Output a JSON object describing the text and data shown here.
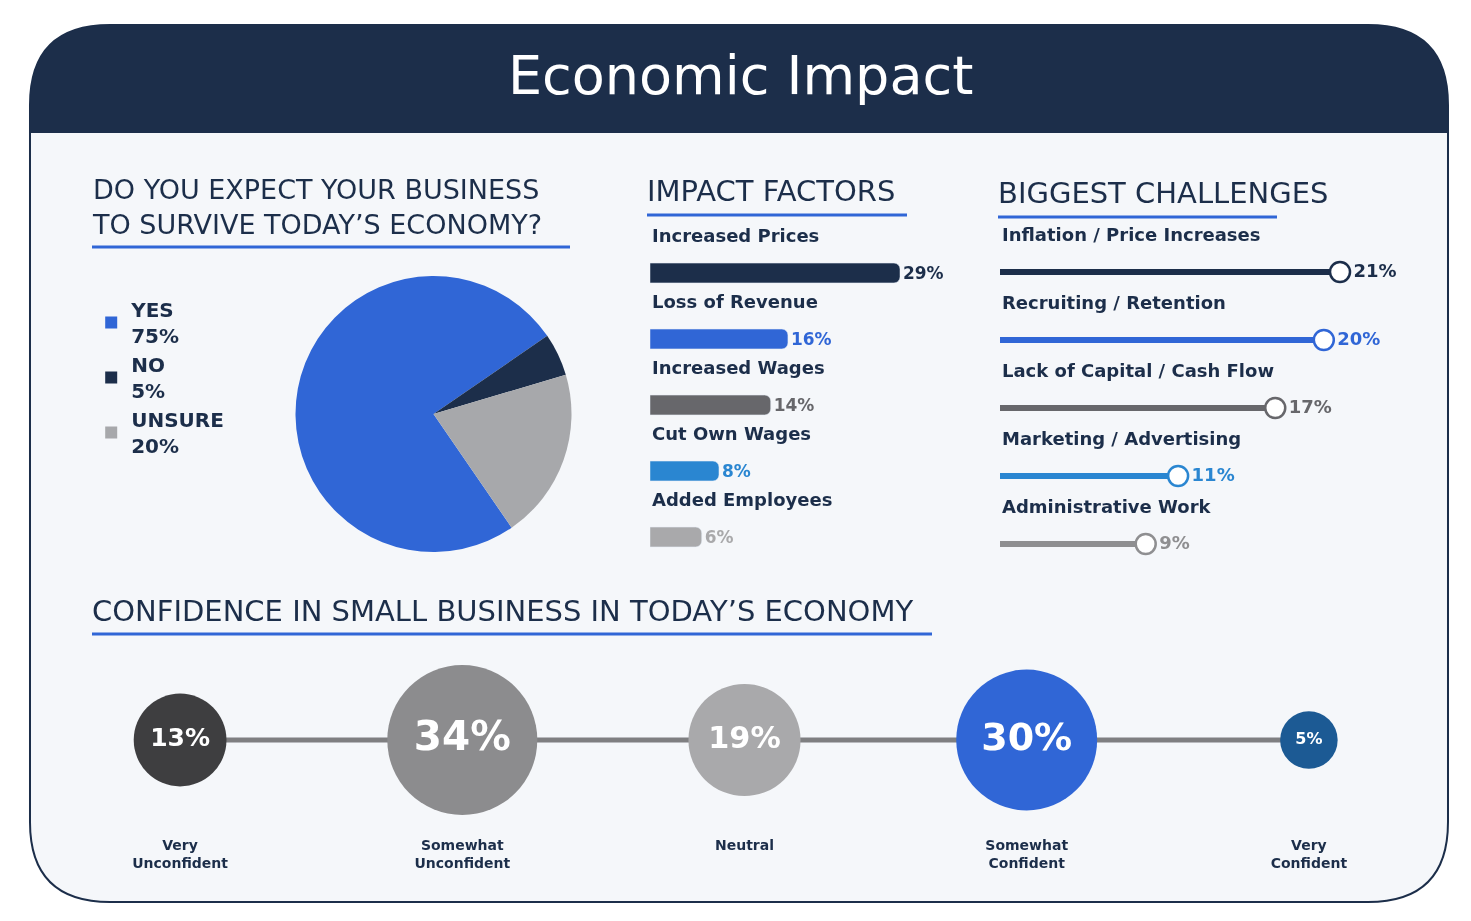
{
  "chart_data": [
    {
      "type": "other",
      "title": "Economic Impact"
    },
    {
      "type": "pie",
      "title": "DO YOU EXPECT YOUR BUSINESS TO SURVIVE TODAY’S ECONOMY?",
      "categories": [
        "YES",
        "NO",
        "UNSURE"
      ],
      "values": [
        75,
        5,
        20
      ],
      "colors": [
        "#3066d6",
        "#1c2e4a",
        "#a7a8ab"
      ],
      "value_labels": [
        "75%",
        "5%",
        "20%"
      ],
      "legend": "left"
    },
    {
      "type": "bar",
      "orientation": "horizontal",
      "title": "IMPACT FACTORS",
      "categories": [
        "Increased Prices",
        "Loss of Revenue",
        "Increased Wages",
        "Cut Own Wages",
        "Added Employees"
      ],
      "values": [
        29,
        16,
        14,
        8,
        6
      ],
      "colors": [
        "#1c2e4a",
        "#3066d6",
        "#67676b",
        "#2a86d1",
        "#a9a9ab"
      ],
      "value_labels": [
        "29%",
        "16%",
        "14%",
        "8%",
        "6%"
      ]
    },
    {
      "type": "lollipop",
      "orientation": "horizontal",
      "title": "BIGGEST CHALLENGES",
      "categories": [
        "Inflation / Price Increases",
        "Recruiting / Retention",
        "Lack of Capital / Cash Flow",
        "Marketing / Advertising",
        "Administrative Work"
      ],
      "values": [
        21,
        20,
        17,
        11,
        9
      ],
      "colors": [
        "#1c2e4a",
        "#3066d6",
        "#67676b",
        "#2a86d1",
        "#8f8f91"
      ],
      "value_labels": [
        "21%",
        "20%",
        "17%",
        "11%",
        "9%"
      ]
    },
    {
      "type": "other",
      "title": "CONFIDENCE IN SMALL BUSINESS IN TODAY’S ECONOMY",
      "categories": [
        "Very Unconfident",
        "Somewhat Unconfident",
        "Neutral",
        "Somewhat Confident",
        "Very Confident"
      ],
      "values": [
        13,
        34,
        19,
        30,
        5
      ],
      "colors": [
        "#3e3e40",
        "#8c8c8e",
        "#a9a9ab",
        "#3066d6",
        "#1c5a94"
      ],
      "value_labels": [
        "13%",
        "34%",
        "19%",
        "30%",
        "5%"
      ]
    }
  ]
}
